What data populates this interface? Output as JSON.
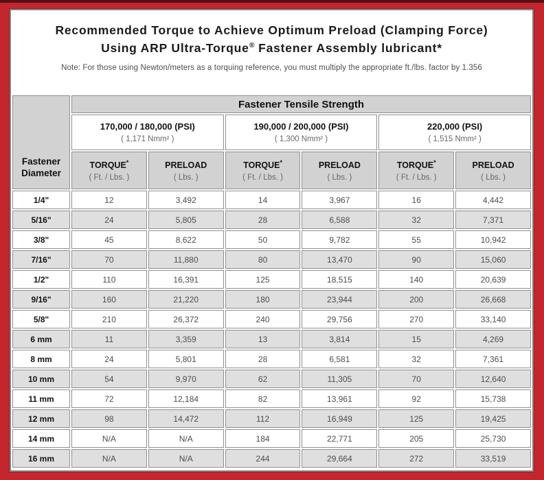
{
  "title": {
    "line1": "Recommended Torque to Achieve Optimum Preload (Clamping Force)",
    "line2_prefix": "Using ARP Ultra-Torque",
    "line2_sup": "®",
    "line2_suffix": " Fastener Assembly lubricant*"
  },
  "note": "Note: For those using Newton/meters as a torquing reference, you must multiply the appropriate ft./lbs. factor by 1.356",
  "table": {
    "corner_header": {
      "line1": "Fastener",
      "line2": "Diameter"
    },
    "tensile_header": "Fastener Tensile Strength",
    "psi_groups": [
      {
        "psi": "170,000 / 180,000 (PSI)",
        "nmm": "( 1,171 Nmm² )"
      },
      {
        "psi": "190,000 / 200,000 (PSI)",
        "nmm": "( 1,300 Nmm² )"
      },
      {
        "psi": "220,000 (PSI)",
        "nmm": "( 1,515 Nmm² )"
      }
    ],
    "col_headers": [
      {
        "title": "TORQUE",
        "sup": "*",
        "unit": "( Ft. / Lbs. )"
      },
      {
        "title": "PRELOAD",
        "sup": "",
        "unit": "( Lbs. )"
      },
      {
        "title": "TORQUE",
        "sup": "*",
        "unit": "( Ft. / Lbs. )"
      },
      {
        "title": "PRELOAD",
        "sup": "",
        "unit": "( Lbs. )"
      },
      {
        "title": "TORQUE",
        "sup": "*",
        "unit": "( Ft. / Lbs. )"
      },
      {
        "title": "PRELOAD",
        "sup": "",
        "unit": "( Lbs. )"
      }
    ],
    "rows": [
      {
        "diameter": "1/4\"",
        "values": [
          "12",
          "3,492",
          "14",
          "3,967",
          "16",
          "4,442"
        ]
      },
      {
        "diameter": "5/16\"",
        "values": [
          "24",
          "5,805",
          "28",
          "6,588",
          "32",
          "7,371"
        ]
      },
      {
        "diameter": "3/8\"",
        "values": [
          "45",
          "8,622",
          "50",
          "9,782",
          "55",
          "10,942"
        ]
      },
      {
        "diameter": "7/16\"",
        "values": [
          "70",
          "11,880",
          "80",
          "13,470",
          "90",
          "15,060"
        ]
      },
      {
        "diameter": "1/2\"",
        "values": [
          "110",
          "16,391",
          "125",
          "18,515",
          "140",
          "20,639"
        ]
      },
      {
        "diameter": "9/16\"",
        "values": [
          "160",
          "21,220",
          "180",
          "23,944",
          "200",
          "26,668"
        ]
      },
      {
        "diameter": "5/8\"",
        "values": [
          "210",
          "26,372",
          "240",
          "29,756",
          "270",
          "33,140"
        ]
      },
      {
        "diameter": "6 mm",
        "values": [
          "11",
          "3,359",
          "13",
          "3,814",
          "15",
          "4,269"
        ]
      },
      {
        "diameter": "8 mm",
        "values": [
          "24",
          "5,801",
          "28",
          "6,581",
          "32",
          "7,361"
        ]
      },
      {
        "diameter": "10 mm",
        "values": [
          "54",
          "9,970",
          "62",
          "11,305",
          "70",
          "12,640"
        ]
      },
      {
        "diameter": "11 mm",
        "values": [
          "72",
          "12,184",
          "82",
          "13,961",
          "92",
          "15,738"
        ]
      },
      {
        "diameter": "12 mm",
        "values": [
          "98",
          "14,472",
          "112",
          "16,949",
          "125",
          "19,425"
        ]
      },
      {
        "diameter": "14 mm",
        "values": [
          "N/A",
          "N/A",
          "184",
          "22,771",
          "205",
          "25,730"
        ]
      },
      {
        "diameter": "16 mm",
        "values": [
          "N/A",
          "N/A",
          "244",
          "29,664",
          "272",
          "33,519"
        ]
      }
    ]
  },
  "colors": {
    "frame_red": "#c4262d",
    "frame_dark_strip": "#571114",
    "header_gray": "#d2d2d2",
    "alt_row_gray": "#dfdfdf",
    "cell_border": "#8f8f8f"
  },
  "chart_data": {
    "type": "table",
    "title": "Recommended Torque to Achieve Optimum Preload (Clamping Force) Using ARP Ultra-Torque® Fastener Assembly lubricant*",
    "columns": [
      "Fastener Diameter",
      "170,000/180,000 PSI — Torque (Ft./Lbs.)",
      "170,000/180,000 PSI — Preload (Lbs.)",
      "190,000/200,000 PSI — Torque (Ft./Lbs.)",
      "190,000/200,000 PSI — Preload (Lbs.)",
      "220,000 PSI — Torque (Ft./Lbs.)",
      "220,000 PSI — Preload (Lbs.)"
    ],
    "rows": [
      [
        "1/4\"",
        12,
        3492,
        14,
        3967,
        16,
        4442
      ],
      [
        "5/16\"",
        24,
        5805,
        28,
        6588,
        32,
        7371
      ],
      [
        "3/8\"",
        45,
        8622,
        50,
        9782,
        55,
        10942
      ],
      [
        "7/16\"",
        70,
        11880,
        80,
        13470,
        90,
        15060
      ],
      [
        "1/2\"",
        110,
        16391,
        125,
        18515,
        140,
        20639
      ],
      [
        "9/16\"",
        160,
        21220,
        180,
        23944,
        200,
        26668
      ],
      [
        "5/8\"",
        210,
        26372,
        240,
        29756,
        270,
        33140
      ],
      [
        "6 mm",
        11,
        3359,
        13,
        3814,
        15,
        4269
      ],
      [
        "8 mm",
        24,
        5801,
        28,
        6581,
        32,
        7361
      ],
      [
        "10 mm",
        54,
        9970,
        62,
        11305,
        70,
        12640
      ],
      [
        "11 mm",
        72,
        12184,
        82,
        13961,
        92,
        15738
      ],
      [
        "12 mm",
        98,
        14472,
        112,
        16949,
        125,
        19425
      ],
      [
        "14 mm",
        "N/A",
        "N/A",
        184,
        22771,
        205,
        25730
      ],
      [
        "16 mm",
        "N/A",
        "N/A",
        244,
        29664,
        272,
        33519
      ]
    ]
  }
}
